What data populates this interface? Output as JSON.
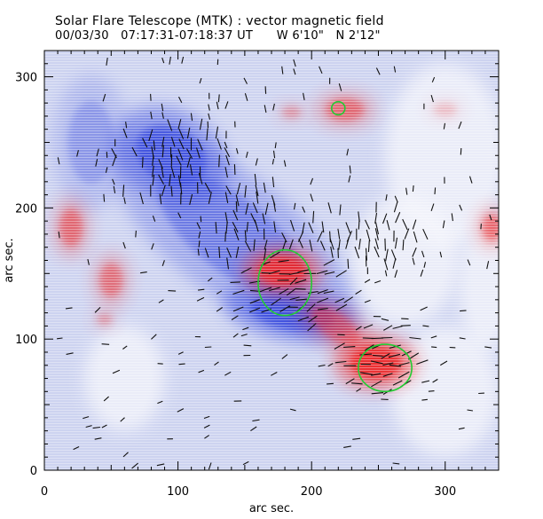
{
  "chart_data": {
    "type": "heatmap",
    "title": "Solar Flare Telescope (MTK) : vector magnetic field",
    "subtitle": "00/03/30   07:17:31-07:18:37 UT      W 6'10\"   N 2'12\"",
    "xlabel": "arc sec.",
    "ylabel": "arc sec.",
    "xlim": [
      0,
      340
    ],
    "ylim": [
      0,
      320
    ],
    "x_ticks": [
      0,
      100,
      200,
      300
    ],
    "y_ticks": [
      0,
      100,
      200,
      300
    ],
    "colormap": {
      "negative_color": "#3344dd",
      "zero_color": "#f4f5fb",
      "positive_color": "#ee2222"
    },
    "field_regions": [
      {
        "name": "negative-band",
        "polarity": "negative",
        "cx": 140,
        "cy": 180,
        "rx": 95,
        "ry": 40,
        "rotation_deg": -38,
        "strength": 0.55
      },
      {
        "name": "negative-core-upper",
        "polarity": "negative",
        "cx": 95,
        "cy": 240,
        "rx": 40,
        "ry": 30,
        "rotation_deg": -30,
        "strength": 0.85
      },
      {
        "name": "negative-core-lower",
        "polarity": "negative",
        "cx": 185,
        "cy": 120,
        "rx": 45,
        "ry": 18,
        "rotation_deg": -10,
        "strength": 0.9
      },
      {
        "name": "negative-left-lobe",
        "polarity": "negative",
        "cx": 35,
        "cy": 250,
        "rx": 25,
        "ry": 45,
        "rotation_deg": 0,
        "strength": 0.35
      },
      {
        "name": "positive-main",
        "polarity": "positive",
        "cx": 178,
        "cy": 152,
        "rx": 26,
        "ry": 16,
        "rotation_deg": 0,
        "strength": 1.0
      },
      {
        "name": "positive-south",
        "polarity": "positive",
        "cx": 248,
        "cy": 82,
        "rx": 27,
        "ry": 18,
        "rotation_deg": 0,
        "strength": 1.0
      },
      {
        "name": "positive-bridge",
        "polarity": "positive",
        "cx": 218,
        "cy": 110,
        "rx": 30,
        "ry": 14,
        "rotation_deg": -35,
        "strength": 0.55
      },
      {
        "name": "positive-north",
        "polarity": "positive",
        "cx": 225,
        "cy": 275,
        "rx": 20,
        "ry": 12,
        "rotation_deg": 0,
        "strength": 0.55
      },
      {
        "name": "positive-north-small",
        "polarity": "positive",
        "cx": 185,
        "cy": 273,
        "rx": 10,
        "ry": 6,
        "rotation_deg": 0,
        "strength": 0.35
      },
      {
        "name": "positive-west",
        "polarity": "positive",
        "cx": 20,
        "cy": 185,
        "rx": 12,
        "ry": 20,
        "rotation_deg": 0,
        "strength": 0.55
      },
      {
        "name": "positive-west-lower",
        "polarity": "positive",
        "cx": 50,
        "cy": 145,
        "rx": 12,
        "ry": 18,
        "rotation_deg": 0,
        "strength": 0.5
      },
      {
        "name": "positive-west-small",
        "polarity": "positive",
        "cx": 45,
        "cy": 115,
        "rx": 8,
        "ry": 6,
        "rotation_deg": 0,
        "strength": 0.35
      },
      {
        "name": "positive-east-edge",
        "polarity": "positive",
        "cx": 335,
        "cy": 185,
        "rx": 10,
        "ry": 14,
        "rotation_deg": 0,
        "strength": 0.6
      },
      {
        "name": "positive-right-faint",
        "polarity": "positive",
        "cx": 300,
        "cy": 275,
        "rx": 12,
        "ry": 7,
        "rotation_deg": 0,
        "strength": 0.2
      }
    ],
    "green_contours": [
      {
        "cx": 180,
        "cy": 143,
        "rx": 20,
        "ry": 25,
        "rotation_deg": 0
      },
      {
        "cx": 255,
        "cy": 78,
        "rx": 20,
        "ry": 18,
        "rotation_deg": 0
      },
      {
        "cx": 220,
        "cy": 276,
        "rx": 5,
        "ry": 5,
        "rotation_deg": 0
      }
    ],
    "transverse_field_vectors": {
      "grid_spacing_arcsec": 7,
      "dense_clusters": [
        {
          "cx": 95,
          "cy": 235,
          "rx": 42,
          "ry": 30,
          "angle_deg": 95
        },
        {
          "cx": 185,
          "cy": 140,
          "rx": 45,
          "ry": 30,
          "angle_deg": 20
        },
        {
          "cx": 255,
          "cy": 85,
          "rx": 35,
          "ry": 25,
          "angle_deg": 10
        },
        {
          "cx": 235,
          "cy": 180,
          "rx": 50,
          "ry": 25,
          "angle_deg": 90
        },
        {
          "cx": 150,
          "cy": 190,
          "rx": 30,
          "ry": 40,
          "angle_deg": 95
        }
      ]
    }
  }
}
